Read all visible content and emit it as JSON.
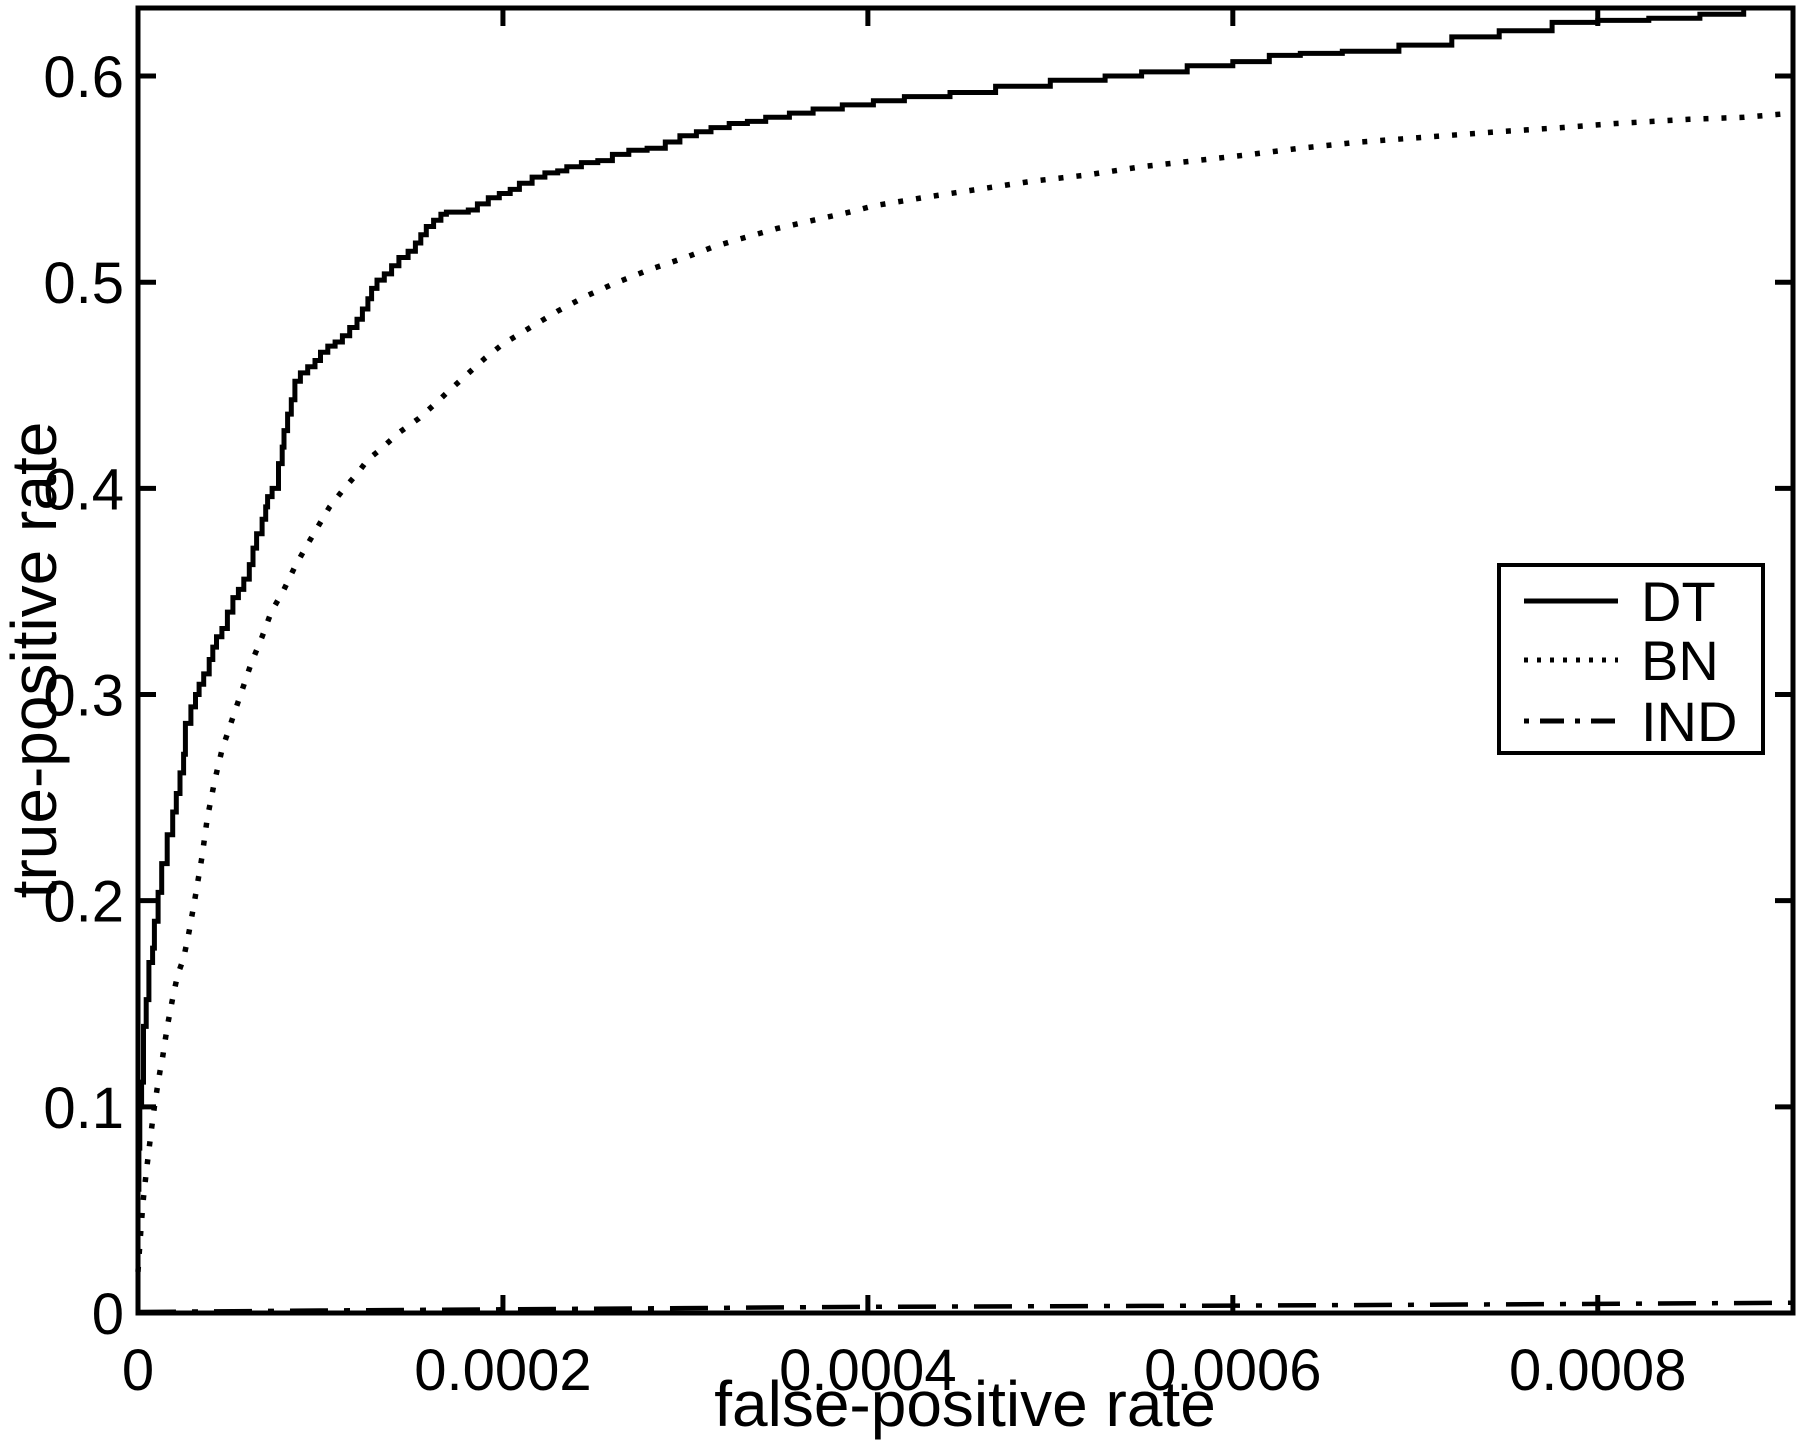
{
  "figure": {
    "background_color": "#ffffff",
    "foreground_color": "#000000"
  },
  "chart_data": {
    "type": "line",
    "title": "",
    "xlabel": "false-positive rate",
    "ylabel": "true-positive rate",
    "xlim": [
      0,
      0.000907
    ],
    "ylim": [
      0,
      0.633
    ],
    "grid": false,
    "x_ticks": [
      {
        "value": 0,
        "label": "0"
      },
      {
        "value": 0.0002,
        "label": "0.0002"
      },
      {
        "value": 0.0004,
        "label": "0.0004"
      },
      {
        "value": 0.0006,
        "label": "0.0006"
      },
      {
        "value": 0.0008,
        "label": "0.0008"
      }
    ],
    "y_ticks": [
      {
        "value": 0.0,
        "label": "0"
      },
      {
        "value": 0.1,
        "label": "0.1"
      },
      {
        "value": 0.2,
        "label": "0.2"
      },
      {
        "value": 0.3,
        "label": "0.3"
      },
      {
        "value": 0.4,
        "label": "0.4"
      },
      {
        "value": 0.5,
        "label": "0.5"
      },
      {
        "value": 0.6,
        "label": "0.6"
      }
    ],
    "legend": {
      "position": "right-middle",
      "entries": [
        {
          "label": "DT",
          "style": "solid"
        },
        {
          "label": "BN",
          "style": "dotted"
        },
        {
          "label": "IND",
          "style": "dashdot"
        }
      ]
    },
    "series": [
      {
        "name": "DT",
        "style": "solid",
        "interpolation": "step",
        "points": [
          [
            0,
            0.03
          ],
          [
            5e-07,
            0.06
          ],
          [
            1e-06,
            0.08
          ],
          [
            2e-06,
            0.1
          ],
          [
            3e-06,
            0.112
          ],
          [
            4.5e-06,
            0.139
          ],
          [
            6e-06,
            0.152
          ],
          [
            8e-06,
            0.17
          ],
          [
            9e-06,
            0.177
          ],
          [
            1.1e-05,
            0.19
          ],
          [
            1.3e-05,
            0.204
          ],
          [
            1.6e-05,
            0.218
          ],
          [
            1.9e-05,
            0.232
          ],
          [
            2.1e-05,
            0.243
          ],
          [
            2.3e-05,
            0.252
          ],
          [
            2.5e-05,
            0.262
          ],
          [
            2.6e-05,
            0.271
          ],
          [
            2.9e-05,
            0.286
          ],
          [
            3.15e-05,
            0.294
          ],
          [
            3.35e-05,
            0.3
          ],
          [
            3.6e-05,
            0.305
          ],
          [
            3.9e-05,
            0.31
          ],
          [
            4.1e-05,
            0.317
          ],
          [
            4.3e-05,
            0.323
          ],
          [
            4.6e-05,
            0.328
          ],
          [
            4.9e-05,
            0.332
          ],
          [
            5.2e-05,
            0.34
          ],
          [
            5.5e-05,
            0.347
          ],
          [
            5.8e-05,
            0.351
          ],
          [
            6.1e-05,
            0.356
          ],
          [
            6.3e-05,
            0.363
          ],
          [
            6.5e-05,
            0.371
          ],
          [
            6.8e-05,
            0.378
          ],
          [
            7e-05,
            0.385
          ],
          [
            7.1e-05,
            0.391
          ],
          [
            7.35e-05,
            0.396
          ],
          [
            7.7e-05,
            0.4
          ],
          [
            7.9e-05,
            0.412
          ],
          [
            8e-05,
            0.42
          ],
          [
            8.2e-05,
            0.428
          ],
          [
            8.4e-05,
            0.436
          ],
          [
            8.6e-05,
            0.443
          ],
          [
            8.9e-05,
            0.452
          ],
          [
            9.3e-05,
            0.456
          ],
          [
            9.7e-05,
            0.459
          ],
          [
            0.0001,
            0.462
          ],
          [
            0.000104,
            0.466
          ],
          [
            0.000108,
            0.469
          ],
          [
            0.000112,
            0.471
          ],
          [
            0.000116,
            0.474
          ],
          [
            0.00012,
            0.478
          ],
          [
            0.000123,
            0.482
          ],
          [
            0.000126,
            0.487
          ],
          [
            0.000128,
            0.492
          ],
          [
            0.000131,
            0.497
          ],
          [
            0.000135,
            0.501
          ],
          [
            0.000139,
            0.504
          ],
          [
            0.000143,
            0.508
          ],
          [
            0.000148,
            0.512
          ],
          [
            0.000152,
            0.515
          ],
          [
            0.000155,
            0.519
          ],
          [
            0.000158,
            0.523
          ],
          [
            0.000162,
            0.527
          ],
          [
            0.000166,
            0.53
          ],
          [
            0.000169,
            0.533
          ],
          [
            0.000175,
            0.534
          ],
          [
            0.000181,
            0.534
          ],
          [
            0.000186,
            0.535
          ],
          [
            0.000192,
            0.538
          ],
          [
            0.000198,
            0.541
          ],
          [
            0.000204,
            0.543
          ],
          [
            0.000209,
            0.545
          ],
          [
            0.000216,
            0.548
          ],
          [
            0.000223,
            0.551
          ],
          [
            0.00023,
            0.553
          ],
          [
            0.000235,
            0.554
          ],
          [
            0.000243,
            0.556
          ],
          [
            0.000252,
            0.558
          ],
          [
            0.00026,
            0.559
          ],
          [
            0.000269,
            0.562
          ],
          [
            0.000279,
            0.564
          ],
          [
            0.000289,
            0.565
          ],
          [
            0.000297,
            0.568
          ],
          [
            0.000306,
            0.571
          ],
          [
            0.000314,
            0.573
          ],
          [
            0.000324,
            0.575
          ],
          [
            0.000334,
            0.577
          ],
          [
            0.000344,
            0.578
          ],
          [
            0.000357,
            0.58
          ],
          [
            0.00037,
            0.582
          ],
          [
            0.000386,
            0.584
          ],
          [
            0.000403,
            0.586
          ],
          [
            0.00042,
            0.588
          ],
          [
            0.000445,
            0.59
          ],
          [
            0.00047,
            0.592
          ],
          [
            0.0005,
            0.595
          ],
          [
            0.00053,
            0.598
          ],
          [
            0.00055,
            0.6
          ],
          [
            0.000575,
            0.602
          ],
          [
            0.0006,
            0.605
          ],
          [
            0.00062,
            0.607
          ],
          [
            0.000637,
            0.61
          ],
          [
            0.00066,
            0.611
          ],
          [
            0.000691,
            0.612
          ],
          [
            0.00072,
            0.615
          ],
          [
            0.000746,
            0.619
          ],
          [
            0.000775,
            0.622
          ],
          [
            0.0008,
            0.626
          ],
          [
            0.000828,
            0.627
          ],
          [
            0.000856,
            0.628
          ],
          [
            0.00088,
            0.63
          ],
          [
            0.000907,
            0.633
          ]
        ]
      },
      {
        "name": "BN",
        "style": "dotted",
        "interpolation": "linear",
        "points": [
          [
            0,
            0.02
          ],
          [
            1e-06,
            0.033
          ],
          [
            2e-06,
            0.045
          ],
          [
            3e-06,
            0.056
          ],
          [
            4.5e-06,
            0.068
          ],
          [
            6e-06,
            0.079
          ],
          [
            7.5e-06,
            0.09
          ],
          [
            9e-06,
            0.1
          ],
          [
            1.05e-05,
            0.109
          ],
          [
            1.2e-05,
            0.117
          ],
          [
            1.35e-05,
            0.124
          ],
          [
            1.5e-05,
            0.133
          ],
          [
            1.65e-05,
            0.141
          ],
          [
            1.8e-05,
            0.148
          ],
          [
            1.95e-05,
            0.155
          ],
          [
            2.1e-05,
            0.161
          ],
          [
            2.25e-05,
            0.166
          ],
          [
            2.5e-05,
            0.172
          ],
          [
            2.8e-05,
            0.185
          ],
          [
            3.1e-05,
            0.2
          ],
          [
            3.5e-05,
            0.221
          ],
          [
            3.8e-05,
            0.24
          ],
          [
            4.2e-05,
            0.258
          ],
          [
            4.6e-05,
            0.273
          ],
          [
            5.2e-05,
            0.289
          ],
          [
            5.7e-05,
            0.302
          ],
          [
            6.2e-05,
            0.315
          ],
          [
            6.8e-05,
            0.328
          ],
          [
            7.3e-05,
            0.34
          ],
          [
            8e-05,
            0.351
          ],
          [
            8.6e-05,
            0.362
          ],
          [
            9.3e-05,
            0.373
          ],
          [
            9.9e-05,
            0.382
          ],
          [
            0.000105,
            0.391
          ],
          [
            0.000113,
            0.4
          ],
          [
            0.00012,
            0.407
          ],
          [
            0.000126,
            0.414
          ],
          [
            0.000133,
            0.419
          ],
          [
            0.000143,
            0.427
          ],
          [
            0.000154,
            0.434
          ],
          [
            0.000164,
            0.442
          ],
          [
            0.00017,
            0.447
          ],
          [
            0.00018,
            0.455
          ],
          [
            0.00019,
            0.463
          ],
          [
            0.0002,
            0.47
          ],
          [
            0.000215,
            0.478
          ],
          [
            0.00023,
            0.486
          ],
          [
            0.000245,
            0.493
          ],
          [
            0.00026,
            0.499
          ],
          [
            0.00028,
            0.506
          ],
          [
            0.0003,
            0.512
          ],
          [
            0.000315,
            0.517
          ],
          [
            0.00033,
            0.521
          ],
          [
            0.00035,
            0.526
          ],
          [
            0.00037,
            0.53
          ],
          [
            0.00039,
            0.534
          ],
          [
            0.000403,
            0.537
          ],
          [
            0.00043,
            0.541
          ],
          [
            0.00046,
            0.545
          ],
          [
            0.00049,
            0.549
          ],
          [
            0.00052,
            0.552
          ],
          [
            0.00055,
            0.556
          ],
          [
            0.00058,
            0.559
          ],
          [
            0.00061,
            0.562
          ],
          [
            0.000637,
            0.565
          ],
          [
            0.00067,
            0.568
          ],
          [
            0.0007,
            0.57
          ],
          [
            0.000746,
            0.573
          ],
          [
            0.00078,
            0.575
          ],
          [
            0.00081,
            0.577
          ],
          [
            0.00085,
            0.579
          ],
          [
            0.00088,
            0.58
          ],
          [
            0.000907,
            0.582
          ]
        ]
      },
      {
        "name": "IND",
        "style": "dashdot",
        "interpolation": "linear",
        "points": [
          [
            0,
            0.0005
          ],
          [
            0.0001,
            0.0012
          ],
          [
            0.0002,
            0.0018
          ],
          [
            0.0003,
            0.0024
          ],
          [
            0.0004,
            0.003
          ],
          [
            0.0005,
            0.0033
          ],
          [
            0.0006,
            0.0036
          ],
          [
            0.0007,
            0.004
          ],
          [
            0.0008,
            0.0044
          ],
          [
            0.000907,
            0.005
          ]
        ]
      }
    ]
  }
}
